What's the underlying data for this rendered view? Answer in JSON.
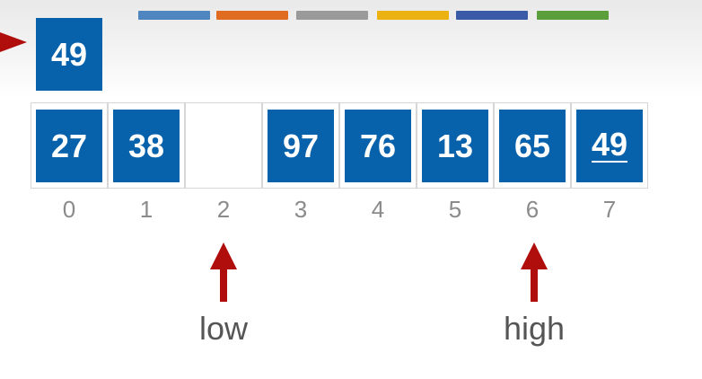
{
  "legend_bars": [
    {
      "name": "blue",
      "color": "#4f86bf"
    },
    {
      "name": "orange",
      "color": "#e06c22"
    },
    {
      "name": "gray",
      "color": "#9a9a9a"
    },
    {
      "name": "yellow",
      "color": "#ecb212"
    },
    {
      "name": "navy",
      "color": "#3b5ba8"
    },
    {
      "name": "green",
      "color": "#5b9e3c"
    }
  ],
  "pivot": {
    "value": "49"
  },
  "array": {
    "cells": [
      {
        "index": "0",
        "value": "27"
      },
      {
        "index": "1",
        "value": "38"
      },
      {
        "index": "2",
        "value": ""
      },
      {
        "index": "3",
        "value": "97"
      },
      {
        "index": "4",
        "value": "76"
      },
      {
        "index": "5",
        "value": "13"
      },
      {
        "index": "6",
        "value": "65"
      },
      {
        "index": "7",
        "value": "49"
      }
    ]
  },
  "pointers": {
    "low": {
      "label": "low",
      "index": 2
    },
    "high": {
      "label": "high",
      "index": 6
    }
  },
  "colors": {
    "box": "#0761ab",
    "arrow": "#b00d0d"
  }
}
